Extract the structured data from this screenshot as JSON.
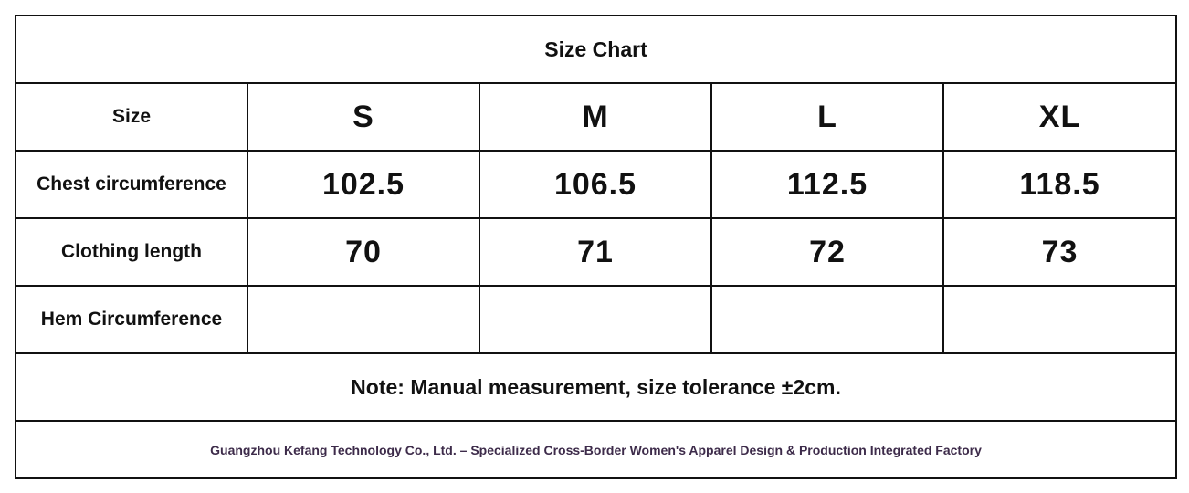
{
  "table": {
    "title": "Size Chart",
    "header": [
      "Size",
      "S",
      "M",
      "L",
      "XL"
    ],
    "rows": [
      {
        "label": "Chest circumference",
        "values": [
          102.5,
          106.5,
          112.5,
          118.5
        ]
      },
      {
        "label": "Clothing length",
        "values": [
          70,
          71,
          72,
          73
        ]
      },
      {
        "label": "Hem Circumference"
      }
    ],
    "note": "Note: Manual measurement, size tolerance ±2cm.",
    "footer": "Guangzhou Kefang Technology Co., Ltd. – Specialized Cross-Border Women's Apparel Design & Production Integrated Factory"
  }
}
